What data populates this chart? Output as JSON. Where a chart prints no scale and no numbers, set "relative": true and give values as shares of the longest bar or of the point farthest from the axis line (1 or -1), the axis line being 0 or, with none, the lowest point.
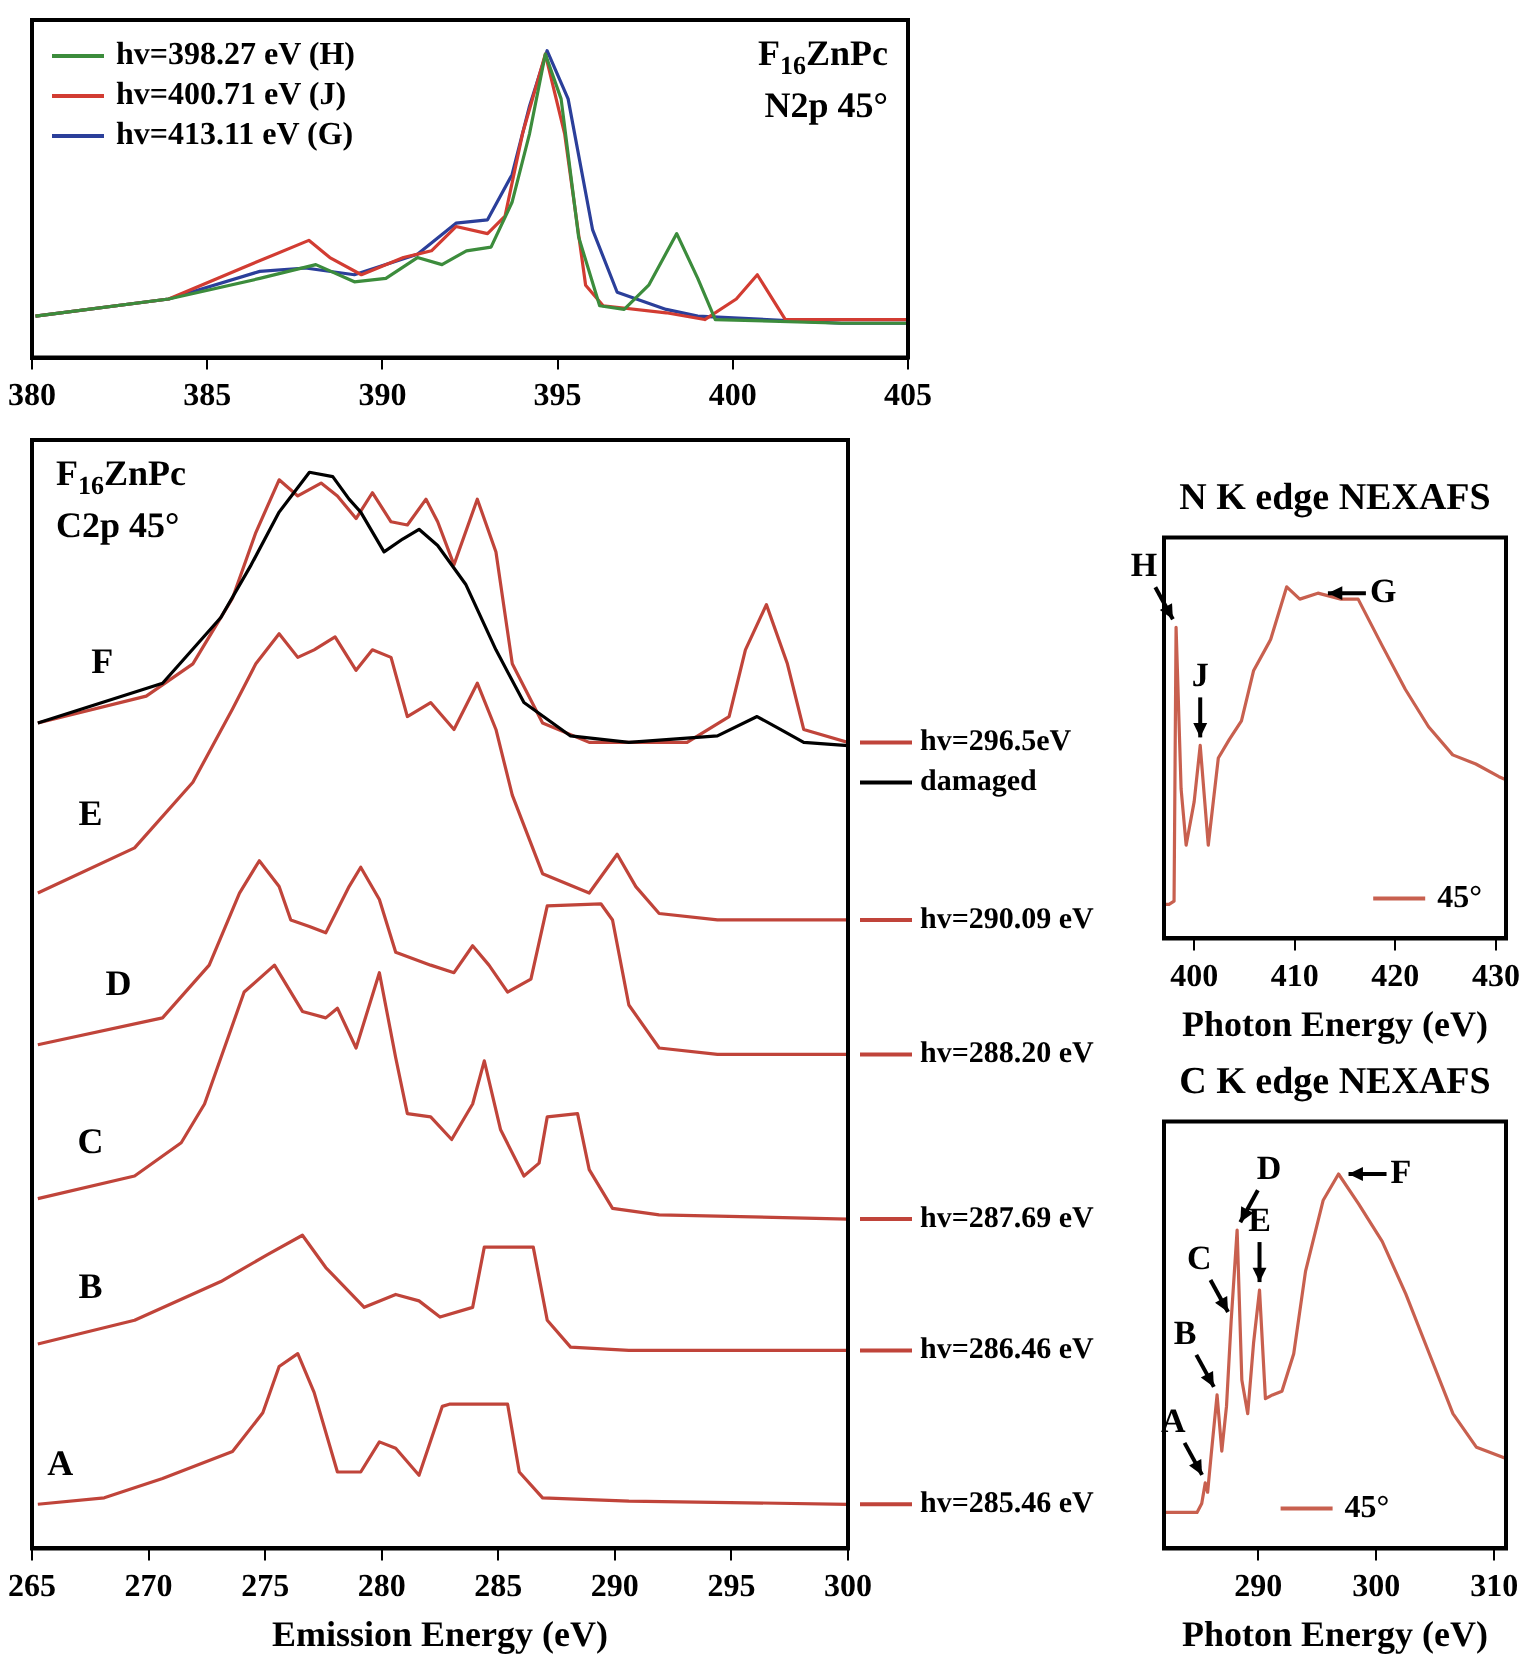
{
  "chart_data": [
    {
      "type": "line",
      "relative": true,
      "xlim": [
        380,
        405
      ],
      "xticks": [
        380,
        385,
        390,
        395,
        400,
        405
      ],
      "legend": "top left",
      "marker": "none",
      "annotations": [
        "F$_{16}$ZnPc",
        "N2p 45°"
      ],
      "series": [
        {
          "name": "hv=398.27 eV (H)",
          "color": "#3c8c3c",
          "x": [
            380.1,
            383.9,
            386.5,
            388.1,
            389.2,
            390.1,
            391,
            391.7,
            392.4,
            393.1,
            393.7,
            394.2,
            394.65,
            395.1,
            395.6,
            396.2,
            396.9,
            397.6,
            398.4,
            399,
            399.5,
            403.1,
            405
          ],
          "values": [
            0.135,
            0.191,
            0.258,
            0.303,
            0.247,
            0.258,
            0.326,
            0.303,
            0.348,
            0.36,
            0.506,
            0.73,
            0.989,
            0.843,
            0.393,
            0.169,
            0.157,
            0.236,
            0.404,
            0.258,
            0.124,
            0.112,
            0.112
          ]
        },
        {
          "name": "hv=400.71 eV (J)",
          "color": "#d23c32",
          "x": [
            380.1,
            383.9,
            386,
            387.9,
            388.5,
            389.4,
            390.6,
            391.4,
            392.1,
            393,
            393.5,
            394,
            394.65,
            395.2,
            395.8,
            396.3,
            398.1,
            399.2,
            400.1,
            400.7,
            401.5,
            403.1,
            405
          ],
          "values": [
            0.135,
            0.191,
            0.292,
            0.382,
            0.326,
            0.27,
            0.326,
            0.348,
            0.427,
            0.404,
            0.461,
            0.73,
            0.989,
            0.73,
            0.236,
            0.169,
            0.146,
            0.124,
            0.191,
            0.27,
            0.124,
            0.124,
            0.124
          ]
        },
        {
          "name": "hv=413.11 eV (G)",
          "color": "#2b3f9a",
          "x": [
            380.1,
            383.9,
            386.5,
            387.8,
            389.2,
            391,
            392.1,
            393,
            393.7,
            394.2,
            394.7,
            395.3,
            396,
            396.7,
            398.1,
            399,
            403.1,
            405
          ],
          "values": [
            0.135,
            0.191,
            0.281,
            0.292,
            0.27,
            0.337,
            0.438,
            0.449,
            0.596,
            0.82,
            1,
            0.843,
            0.416,
            0.213,
            0.157,
            0.135,
            0.112,
            0.112
          ]
        }
      ]
    },
    {
      "type": "line",
      "relative": true,
      "xlim": [
        265,
        300
      ],
      "xticks": [
        265,
        270,
        275,
        280,
        285,
        290,
        295,
        300
      ],
      "xlabel": "Emission Energy (eV)",
      "legend": "right",
      "marker": "none",
      "annotations": [
        "F$_{16}$ZnPc",
        "C2p 45°",
        {
          "text": "F",
          "x": 269.9,
          "y": 0.792
        },
        {
          "text": "E",
          "x": 269.4,
          "y": 0.651
        },
        {
          "text": "D",
          "x": 270.6,
          "y": 0.493
        },
        {
          "text": "C",
          "x": 269.4,
          "y": 0.346
        },
        {
          "text": "B",
          "x": 269.4,
          "y": 0.212
        },
        {
          "text": "A",
          "x": 268.1,
          "y": 0.047
        }
      ],
      "series": [
        {
          "name": "damaged",
          "color": "#000000",
          "x": [
            265.25,
            270.6,
            273.1,
            274.4,
            275.6,
            276.9,
            277.9,
            278.6,
            279.1,
            280.1,
            280.9,
            281.6,
            282.4,
            283.6,
            284.9,
            286.1,
            288.1,
            290.6,
            294.4,
            296.1,
            297.1,
            298.1,
            300
          ],
          "values": [
            0.767,
            0.804,
            0.865,
            0.914,
            0.963,
            1,
            0.996,
            0.975,
            0.963,
            0.926,
            0.938,
            0.947,
            0.932,
            0.896,
            0.835,
            0.786,
            0.755,
            0.749,
            0.755,
            0.773,
            0.761,
            0.749,
            0.746
          ]
        },
        {
          "name": "hv=296.5eV",
          "color": "#c0443a",
          "x": [
            265.25,
            269.9,
            271.9,
            273.6,
            274.6,
            275.6,
            276.4,
            277.4,
            278.1,
            278.9,
            279.6,
            280.4,
            281.1,
            281.9,
            282.4,
            283.1,
            284.1,
            284.9,
            285.6,
            286.9,
            288.9,
            293.1,
            294.9,
            295.6,
            296.5,
            297.4,
            298.1,
            300
          ],
          "values": [
            0.767,
            0.792,
            0.822,
            0.883,
            0.944,
            0.993,
            0.978,
            0.99,
            0.978,
            0.957,
            0.981,
            0.954,
            0.951,
            0.975,
            0.954,
            0.914,
            0.975,
            0.926,
            0.822,
            0.767,
            0.749,
            0.749,
            0.773,
            0.835,
            0.877,
            0.822,
            0.761,
            0.749
          ]
        },
        {
          "name": "hv=290.09 eV",
          "color": "#c0443a",
          "x": [
            265.25,
            269.4,
            271.9,
            273.6,
            274.6,
            275.6,
            276.4,
            277.1,
            278,
            278.9,
            279.6,
            280.4,
            281.1,
            282.1,
            283.1,
            284.1,
            284.9,
            285.6,
            286.9,
            288.9,
            290.1,
            290.9,
            291.9,
            294.4,
            300
          ],
          "values": [
            0.609,
            0.651,
            0.712,
            0.78,
            0.822,
            0.85,
            0.828,
            0.835,
            0.847,
            0.816,
            0.835,
            0.828,
            0.773,
            0.786,
            0.761,
            0.804,
            0.761,
            0.7,
            0.627,
            0.609,
            0.645,
            0.615,
            0.59,
            0.584,
            0.584
          ]
        },
        {
          "name": "hv=288.20 eV",
          "color": "#c0443a",
          "x": [
            265.25,
            270.6,
            272.6,
            273.9,
            274.75,
            275.6,
            276.1,
            276.9,
            277.6,
            278.6,
            279.1,
            279.9,
            280.6,
            282.1,
            283.1,
            283.9,
            284.6,
            285.4,
            286.4,
            287.1,
            289.4,
            289.9,
            290.6,
            291.9,
            294.4,
            300
          ],
          "values": [
            0.468,
            0.493,
            0.542,
            0.609,
            0.639,
            0.615,
            0.584,
            0.578,
            0.572,
            0.615,
            0.633,
            0.603,
            0.554,
            0.542,
            0.535,
            0.56,
            0.542,
            0.517,
            0.529,
            0.597,
            0.599,
            0.584,
            0.505,
            0.465,
            0.459,
            0.459
          ]
        },
        {
          "name": "hv=287.69 eV",
          "color": "#c0443a",
          "x": [
            265.25,
            269.4,
            271.4,
            272.4,
            274.1,
            275.4,
            276.6,
            277.6,
            278.1,
            278.9,
            279.9,
            280.6,
            281.1,
            282.1,
            283,
            283.9,
            284.4,
            285.1,
            286.1,
            286.75,
            287.1,
            288.4,
            288.9,
            289.9,
            291.9,
            300
          ],
          "values": [
            0.325,
            0.346,
            0.377,
            0.413,
            0.517,
            0.542,
            0.499,
            0.493,
            0.502,
            0.465,
            0.535,
            0.456,
            0.404,
            0.401,
            0.38,
            0.413,
            0.453,
            0.389,
            0.346,
            0.358,
            0.401,
            0.404,
            0.352,
            0.316,
            0.31,
            0.306
          ]
        },
        {
          "name": "hv=286.46 eV",
          "color": "#c0443a",
          "x": [
            265.25,
            269.4,
            273.1,
            275.1,
            276.6,
            277.6,
            279.25,
            280.6,
            281.6,
            282.5,
            283.9,
            284.4,
            286.5,
            287.1,
            288.1,
            290.6,
            300
          ],
          "values": [
            0.19,
            0.212,
            0.248,
            0.273,
            0.291,
            0.261,
            0.224,
            0.236,
            0.23,
            0.215,
            0.224,
            0.28,
            0.28,
            0.212,
            0.187,
            0.184,
            0.184
          ]
        },
        {
          "name": "hv=285.46 eV",
          "color": "#c0443a",
          "x": [
            265.25,
            268.1,
            270.6,
            273.6,
            274.9,
            275.6,
            276.4,
            277.1,
            278.1,
            279.1,
            279.9,
            280.6,
            281.6,
            282.6,
            282.9,
            285.4,
            285.9,
            286.9,
            290.6,
            300
          ],
          "values": [
            0.041,
            0.047,
            0.065,
            0.09,
            0.126,
            0.169,
            0.181,
            0.145,
            0.071,
            0.071,
            0.099,
            0.093,
            0.068,
            0.132,
            0.134,
            0.134,
            0.071,
            0.047,
            0.044,
            0.041
          ]
        }
      ]
    },
    {
      "type": "line",
      "relative": true,
      "title": "N K edge NEXAFS",
      "xlabel": "Photon Energy (eV)",
      "xlim": [
        397,
        431
      ],
      "xticks": [
        400,
        410,
        420,
        430
      ],
      "legend": "bottom right",
      "marker": "none",
      "annotations": [
        {
          "text": "H",
          "x": 398.2,
          "y": 0.885
        },
        {
          "text": "J",
          "x": 400.6,
          "y": 0.549
        },
        {
          "text": "G",
          "x": 412.3,
          "y": 0.982
        }
      ],
      "series": [
        {
          "name": "45°",
          "color": "#c8604f",
          "x": [
            397,
            397.5,
            398,
            398.2,
            398.7,
            399.2,
            400,
            400.6,
            401.4,
            402.4,
            403.5,
            404.7,
            405.9,
            407.6,
            409.2,
            410.5,
            412.3,
            414.6,
            416.3,
            418.7,
            421,
            423.3,
            425.7,
            428,
            430.3,
            431
          ],
          "values": [
            0.097,
            0.097,
            0.106,
            0.885,
            0.425,
            0.265,
            0.389,
            0.549,
            0.265,
            0.513,
            0.566,
            0.619,
            0.761,
            0.85,
            1,
            0.965,
            0.982,
            0.965,
            0.965,
            0.832,
            0.708,
            0.602,
            0.522,
            0.496,
            0.46,
            0.451
          ]
        }
      ]
    },
    {
      "type": "line",
      "relative": true,
      "title": "C K edge NEXAFS",
      "xlabel": "Photon Energy (eV)",
      "xlim": [
        282,
        311
      ],
      "xticks": [
        290,
        300,
        310
      ],
      "legend": "bottom",
      "marker": "none",
      "annotations": [
        {
          "text": "A",
          "x": 285.5,
          "y": 0.175
        },
        {
          "text": "B",
          "x": 286.5,
          "y": 0.41
        },
        {
          "text": "C",
          "x": 287.7,
          "y": 0.61
        },
        {
          "text": "D",
          "x": 288.2,
          "y": 0.85
        },
        {
          "text": "E",
          "x": 290.1,
          "y": 0.69
        },
        {
          "text": "F",
          "x": 296.8,
          "y": 1
        }
      ],
      "series": [
        {
          "name": "45°",
          "color": "#c8604f",
          "x": [
            282,
            284.8,
            285.2,
            285.5,
            285.7,
            286,
            286.5,
            286.9,
            287.3,
            287.7,
            288.2,
            288.6,
            289.1,
            289.6,
            290.1,
            290.6,
            291.2,
            292,
            293,
            294,
            295.5,
            296.8,
            298.5,
            300.5,
            302.5,
            304.5,
            306.5,
            308.5,
            311
          ],
          "values": [
            0.096,
            0.096,
            0.12,
            0.175,
            0.15,
            0.25,
            0.41,
            0.26,
            0.38,
            0.61,
            0.85,
            0.45,
            0.36,
            0.55,
            0.69,
            0.4,
            0.41,
            0.42,
            0.52,
            0.74,
            0.93,
            1,
            0.92,
            0.82,
            0.68,
            0.52,
            0.36,
            0.27,
            0.24
          ]
        }
      ]
    }
  ]
}
